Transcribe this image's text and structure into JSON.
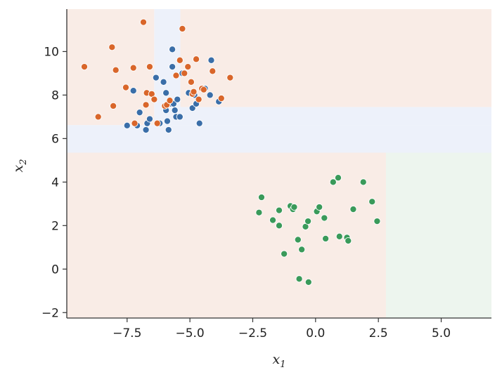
{
  "chart_data": {
    "type": "scatter",
    "title": "",
    "xlabel": "x",
    "xlabel_sub": "1",
    "ylabel": "x",
    "ylabel_sub": "2",
    "xlim": [
      -9.9,
      7.0
    ],
    "ylim": [
      -2.25,
      11.95
    ],
    "xticks": [
      -7.5,
      -5.0,
      -2.5,
      0.0,
      2.5,
      5.0
    ],
    "xtick_labels": [
      "−7.5",
      "−5.0",
      "−2.5",
      "0.0",
      "2.5",
      "5.0"
    ],
    "yticks": [
      -2,
      0,
      2,
      4,
      6,
      8,
      10
    ],
    "ytick_labels": [
      "−2",
      "0",
      "2",
      "4",
      "6",
      "8",
      "10"
    ],
    "grid": false,
    "legend": "none",
    "regions": [
      {
        "class": "orange",
        "x": [
          -9.9,
          7.0
        ],
        "y": [
          -2.25,
          5.35
        ]
      },
      {
        "class": "green",
        "x": [
          2.8,
          7.0
        ],
        "y": [
          -2.25,
          5.35
        ]
      },
      {
        "class": "blue",
        "x": [
          -9.9,
          7.0
        ],
        "y": [
          5.35,
          6.62
        ]
      },
      {
        "class": "orange",
        "x": [
          -9.9,
          -6.42
        ],
        "y": [
          6.62,
          11.95
        ]
      },
      {
        "class": "blue",
        "x": [
          -6.42,
          7.0
        ],
        "y": [
          6.62,
          7.45
        ]
      },
      {
        "class": "blue",
        "x": [
          -6.42,
          -5.38
        ],
        "y": [
          7.45,
          11.95
        ]
      },
      {
        "class": "orange",
        "x": [
          -5.38,
          7.0
        ],
        "y": [
          7.45,
          11.95
        ]
      }
    ],
    "series": [
      {
        "class": "blue",
        "color": "#3a6ea8",
        "x": [
          -7.5,
          -7.25,
          -7.1,
          -7.0,
          -6.75,
          -6.7,
          -6.6,
          -6.35,
          -6.2,
          -6.05,
          -5.95,
          -5.95,
          -5.9,
          -5.85,
          -5.75,
          -5.7,
          -5.7,
          -5.65,
          -5.6,
          -5.55,
          -5.5,
          -5.4,
          -5.3,
          -5.05,
          -4.9,
          -4.82,
          -4.75,
          -4.62,
          -4.4,
          -4.2,
          -4.15,
          -3.85
        ],
        "y": [
          6.6,
          8.2,
          6.6,
          7.2,
          6.4,
          6.7,
          6.9,
          8.8,
          6.7,
          8.6,
          8.1,
          7.3,
          6.8,
          6.4,
          7.6,
          10.1,
          9.3,
          7.6,
          7.3,
          7.0,
          7.8,
          7.0,
          9.0,
          8.1,
          7.4,
          8.0,
          7.6,
          6.7,
          8.3,
          8.0,
          9.6,
          7.7
        ]
      },
      {
        "class": "orange",
        "color": "#d9662a",
        "x": [
          -9.2,
          -8.65,
          -8.1,
          -8.05,
          -7.95,
          -7.55,
          -7.25,
          -7.2,
          -6.85,
          -6.75,
          -6.72,
          -6.6,
          -6.52,
          -6.42,
          -6.3,
          -6.0,
          -5.92,
          -5.8,
          -5.55,
          -5.4,
          -5.3,
          -5.22,
          -5.08,
          -4.95,
          -4.9,
          -4.85,
          -4.75,
          -4.65,
          -4.52,
          -4.45,
          -4.1,
          -3.75,
          -3.4
        ],
        "y": [
          9.3,
          7.0,
          10.2,
          7.5,
          9.15,
          8.35,
          9.25,
          6.7,
          11.35,
          7.55,
          8.1,
          9.3,
          8.05,
          7.8,
          6.7,
          7.5,
          7.55,
          7.75,
          8.9,
          9.6,
          11.05,
          9.0,
          9.3,
          8.6,
          8.05,
          8.15,
          9.65,
          7.8,
          8.3,
          8.25,
          9.1,
          7.85,
          8.8
        ]
      },
      {
        "class": "green",
        "color": "#3a9a5a",
        "x": [
          -2.25,
          -2.15,
          -1.7,
          -1.45,
          -1.45,
          -1.25,
          -1.0,
          -0.9,
          -0.85,
          -0.7,
          -0.65,
          -0.55,
          -0.4,
          -0.3,
          -0.28,
          0.05,
          0.15,
          0.35,
          0.4,
          0.7,
          0.9,
          0.95,
          1.25,
          1.3,
          1.5,
          1.9,
          2.25,
          2.45
        ],
        "y": [
          2.6,
          3.3,
          2.25,
          2.7,
          2.0,
          0.7,
          2.9,
          2.75,
          2.85,
          1.35,
          -0.45,
          0.9,
          1.95,
          2.2,
          -0.6,
          2.65,
          2.85,
          2.35,
          1.4,
          4.0,
          4.2,
          1.5,
          1.45,
          1.3,
          2.75,
          4.0,
          3.1,
          2.2
        ]
      }
    ],
    "region_colors": {
      "orange": "#f9ece6",
      "green": "#edf5ee",
      "blue": "#edf1fa"
    }
  }
}
